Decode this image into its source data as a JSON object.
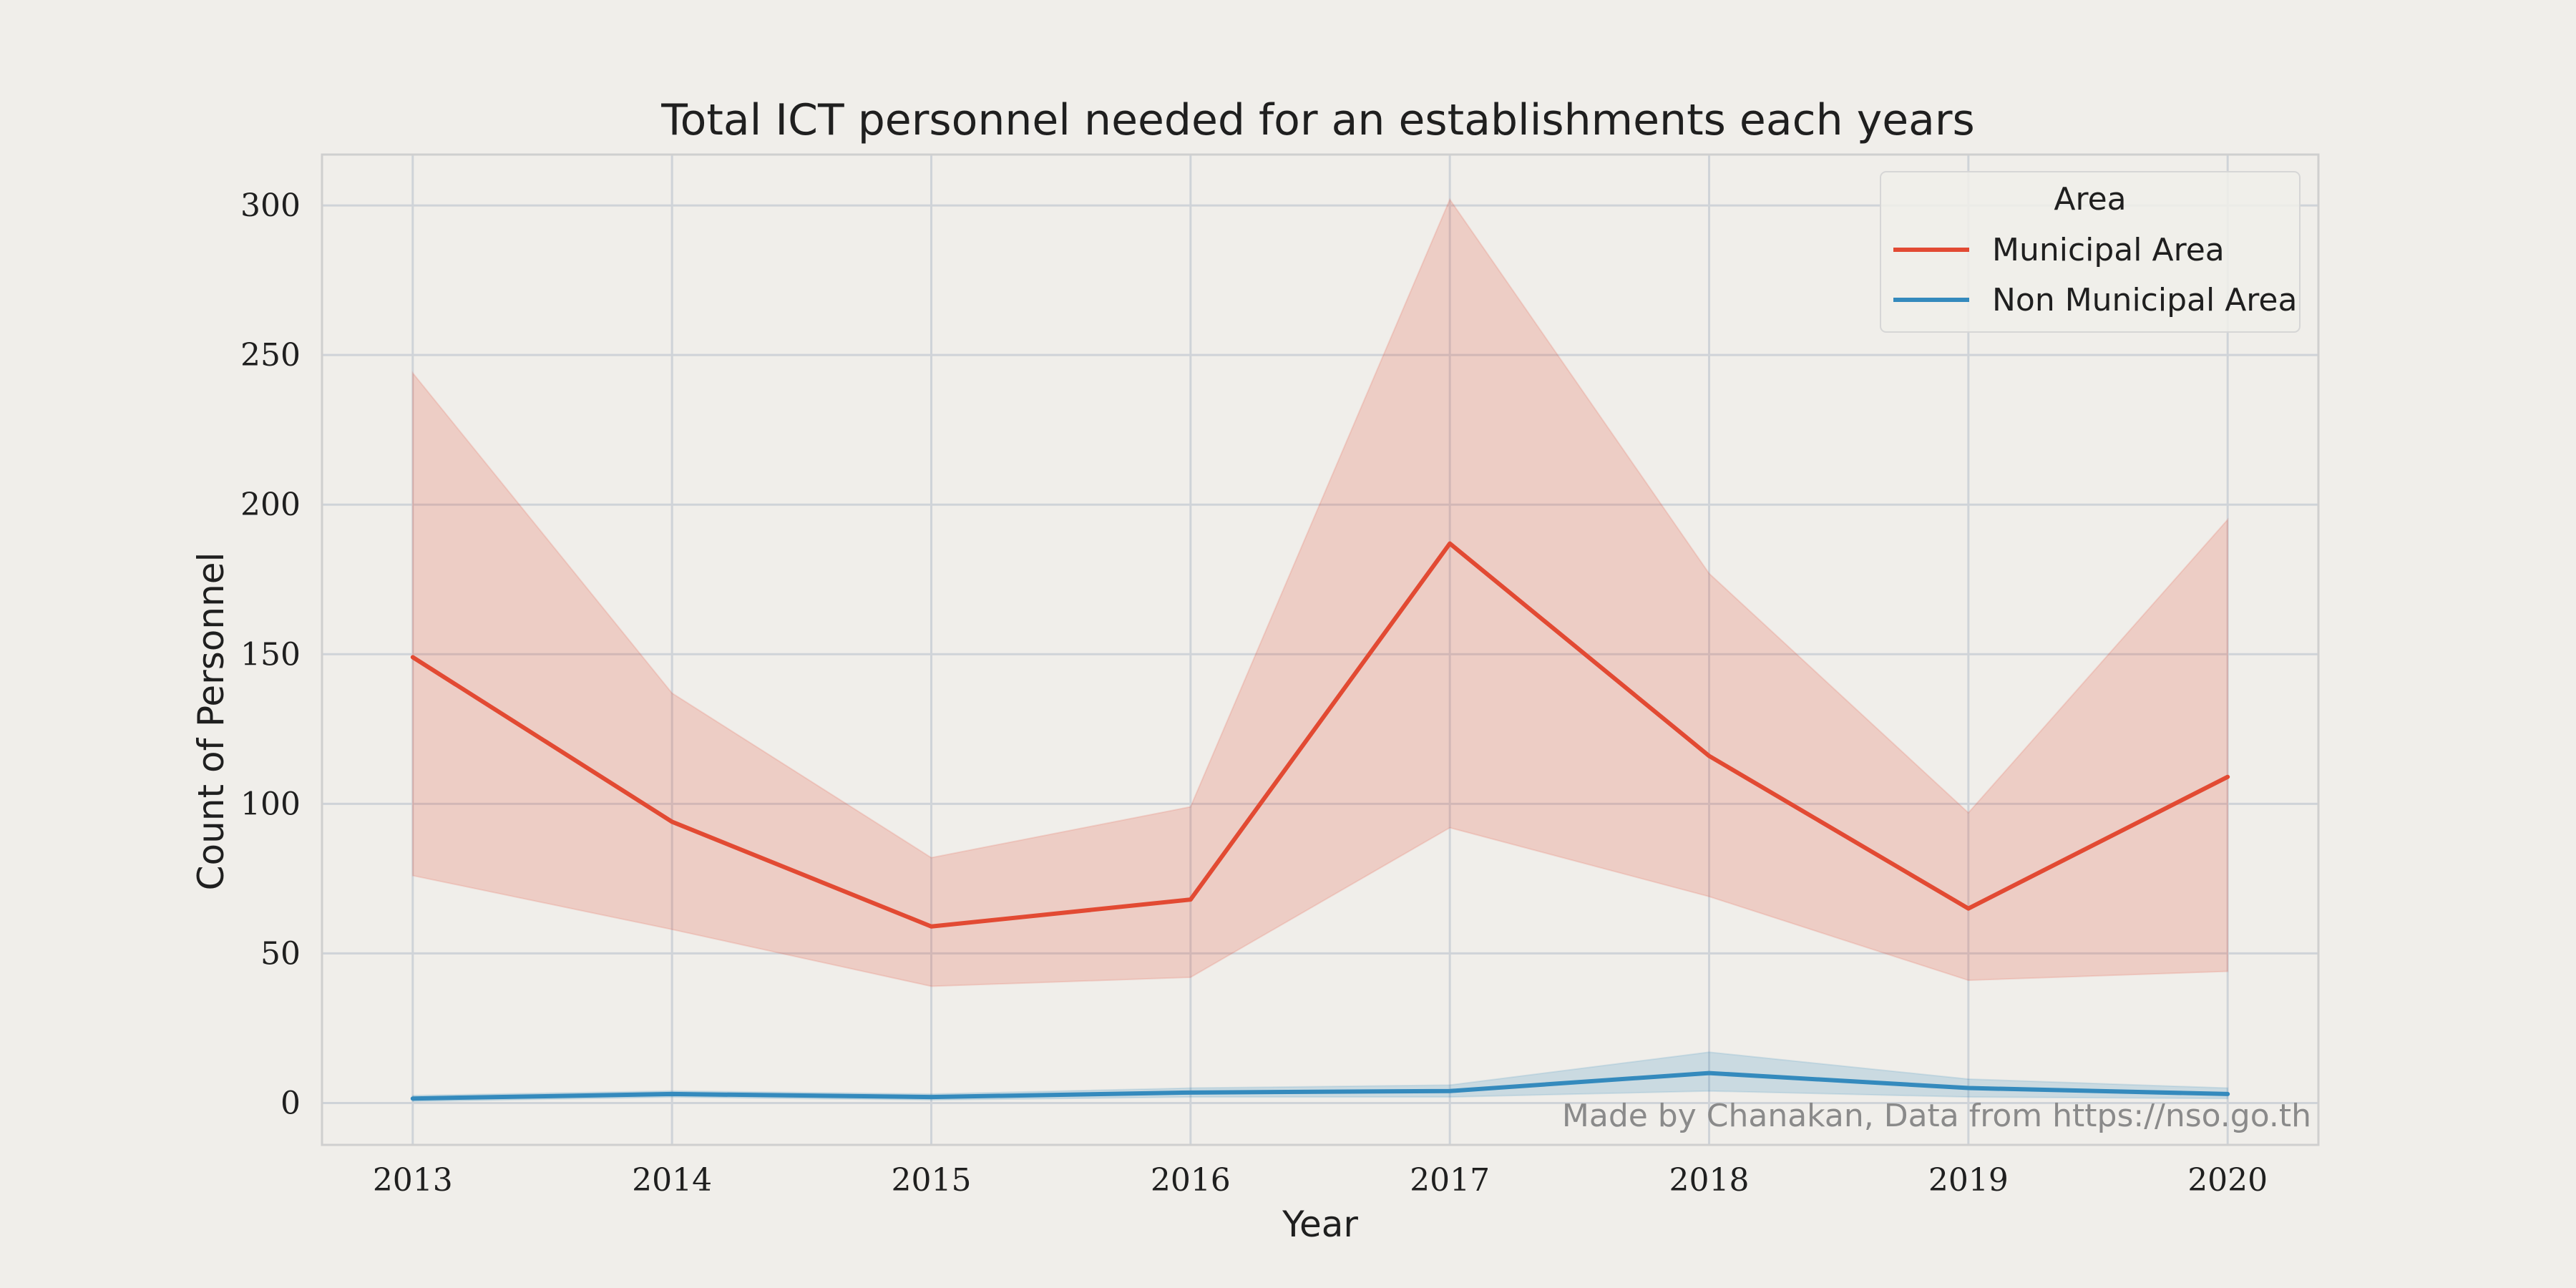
{
  "chart_data": {
    "type": "line",
    "title": "Total ICT personnel needed for an establishments each years",
    "xlabel": "Year",
    "ylabel": "Count of Personnel",
    "x": [
      2013,
      2014,
      2015,
      2016,
      2017,
      2018,
      2019,
      2020
    ],
    "x_ticks": [
      "2013",
      "2014",
      "2015",
      "2016",
      "2017",
      "2018",
      "2019",
      "2020"
    ],
    "y_ticks": [
      "0",
      "50",
      "100",
      "150",
      "200",
      "250",
      "300"
    ],
    "y_tick_values": [
      0,
      50,
      100,
      150,
      200,
      250,
      300
    ],
    "ylim": [
      -14,
      317
    ],
    "grid": true,
    "legend": {
      "title": "Area",
      "placement": "top-right"
    },
    "series": [
      {
        "name": "Municipal Area",
        "color": "#e24a33",
        "values": [
          149,
          94,
          59,
          68,
          187,
          116,
          65,
          109
        ],
        "ci_upper": [
          244,
          137,
          82,
          99,
          302,
          177,
          97,
          195
        ],
        "ci_lower": [
          76,
          58,
          39,
          42,
          92,
          69,
          41,
          44
        ]
      },
      {
        "name": "Non Municipal Area",
        "color": "#348abd",
        "values": [
          1.5,
          3,
          2,
          3.5,
          4,
          10,
          5,
          3
        ],
        "ci_upper": [
          2.5,
          4,
          3,
          5,
          6,
          17,
          8,
          5
        ],
        "ci_lower": [
          0.5,
          2,
          1,
          2,
          2,
          4,
          2,
          1.5
        ]
      }
    ],
    "annotation": "Made by Chanakan, Data from https://nso.go.th"
  }
}
